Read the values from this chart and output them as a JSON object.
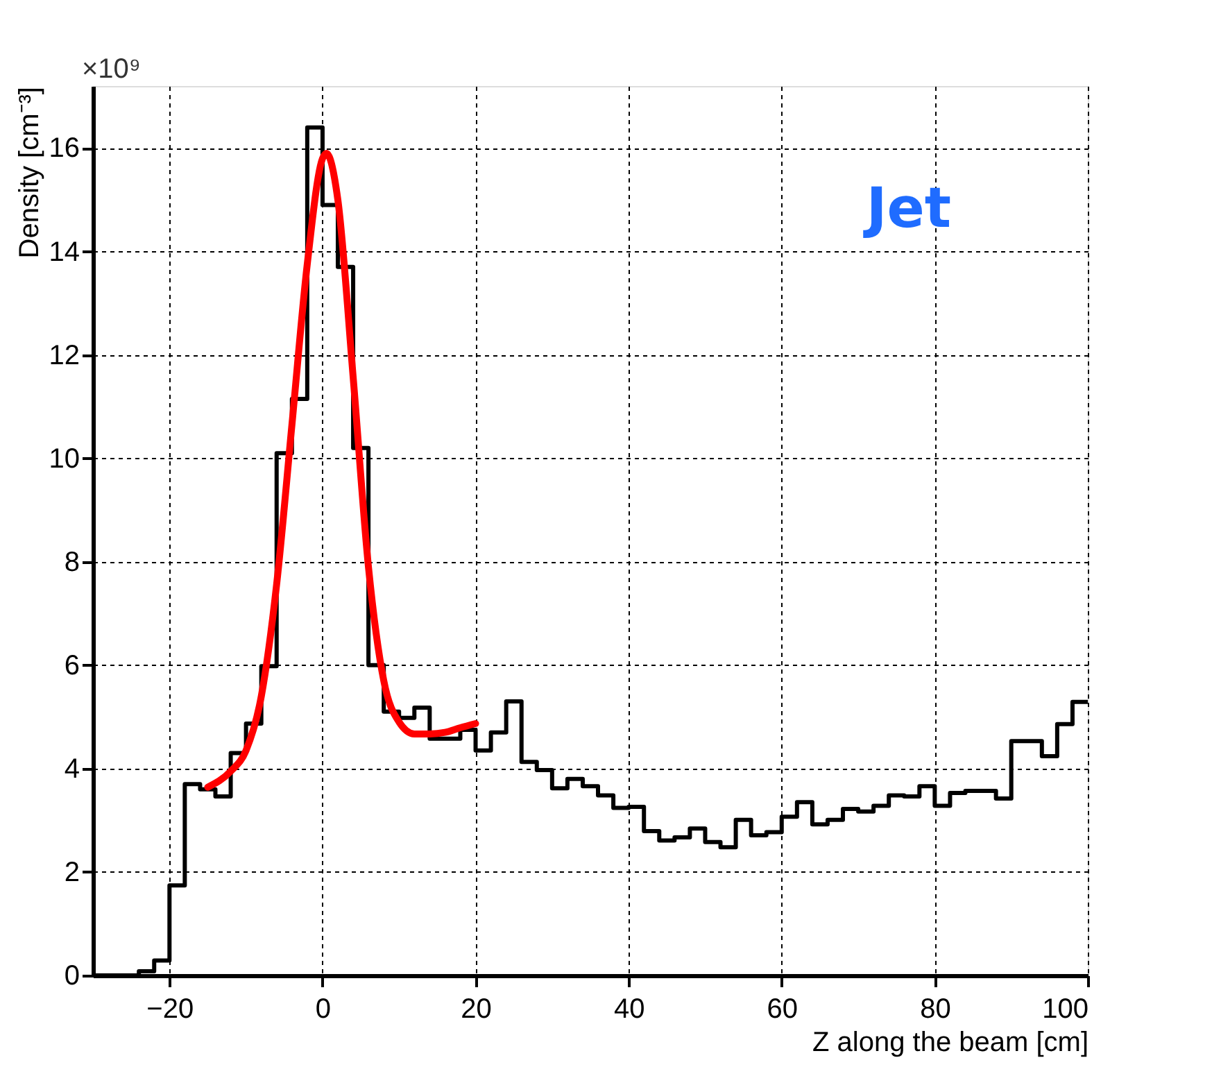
{
  "chart_data": {
    "type": "histogram",
    "xlabel": "Z along the beam [cm]",
    "ylabel": "Density [cm⁻³]",
    "bins": [
      -30,
      -28,
      -26,
      -24,
      -22,
      -20,
      -18,
      -16,
      -14,
      -12,
      -10,
      -8,
      -6,
      -4,
      -2,
      0,
      2,
      4,
      6,
      8,
      10,
      12,
      14,
      16,
      18,
      20,
      22,
      24,
      26,
      28,
      30,
      32,
      34,
      36,
      38,
      40,
      42,
      44,
      46,
      48,
      50,
      52,
      54,
      56,
      58,
      60,
      62,
      64,
      66,
      68,
      70,
      72,
      74,
      76,
      78,
      80,
      82,
      84,
      86,
      88,
      90,
      92,
      94,
      96,
      98,
      100
    ],
    "series": [
      {
        "color": "#000000",
        "values": [
          0,
          0,
          0,
          0.08,
          0.29,
          1.74,
          3.7,
          3.6,
          3.46,
          4.3,
          4.87,
          5.98,
          10.1,
          11.15,
          16.4,
          14.9,
          13.7,
          10.2,
          6.0,
          5.1,
          4.98,
          5.18,
          4.58,
          4.58,
          4.75,
          4.35,
          4.7,
          5.3,
          4.13,
          3.97,
          3.62,
          3.8,
          3.66,
          3.48,
          3.24,
          3.26,
          2.79,
          2.61,
          2.67,
          2.84,
          2.58,
          2.48,
          3.01,
          2.71,
          2.77,
          3.07,
          3.35,
          2.92,
          3.01,
          3.22,
          3.17,
          3.28,
          3.48,
          3.46,
          3.66,
          3.28,
          3.53,
          3.57,
          3.57,
          3.42,
          4.53,
          4.53,
          4.24,
          4.86,
          5.29
        ]
      },
      {
        "type": "line",
        "color": "#ff0000",
        "x": [
          -15,
          -12,
          -10,
          -8,
          -6,
          -4,
          -2,
          0,
          0.5,
          2,
          4,
          6,
          8,
          10,
          12,
          14,
          16,
          18,
          20
        ],
        "values": [
          3.64,
          3.95,
          4.35,
          5.4,
          7.56,
          10.65,
          13.75,
          15.8,
          15.9,
          15.0,
          11.57,
          7.9,
          5.7,
          4.9,
          4.67,
          4.67,
          4.7,
          4.79,
          4.87
        ]
      }
    ],
    "xlim": [
      -30,
      100
    ],
    "xticks": [
      -20,
      0,
      20,
      40,
      60,
      80,
      100
    ],
    "ylim": [
      0,
      17.2
    ],
    "yticks": [
      0,
      2,
      4,
      6,
      8,
      10,
      12,
      14,
      16
    ],
    "grid": true,
    "annotations": [
      "×10⁹",
      "Jet"
    ]
  }
}
